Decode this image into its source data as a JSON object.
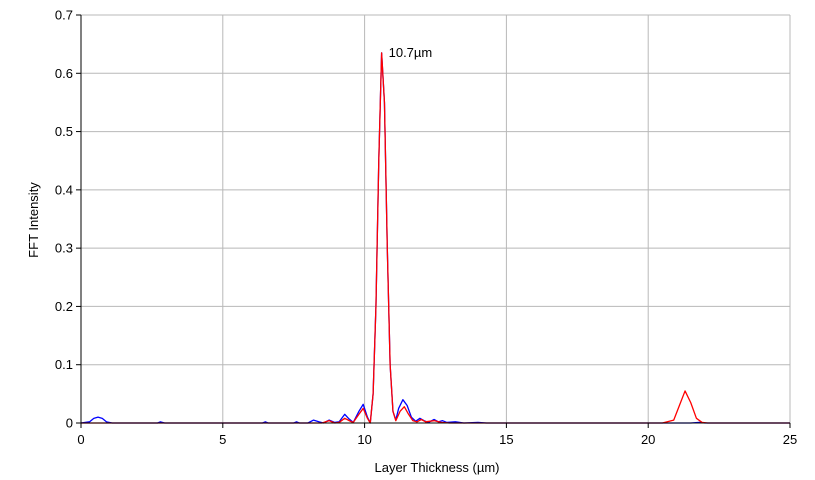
{
  "chart_data": {
    "type": "line",
    "xlabel": "Layer Thickness (µm)",
    "ylabel": "FFT Intensity",
    "xlim": [
      0,
      25
    ],
    "ylim": [
      0,
      0.7
    ],
    "xticks": [
      0,
      5,
      10,
      15,
      20,
      25
    ],
    "yticks": [
      0,
      0.1,
      0.2,
      0.3,
      0.4,
      0.5,
      0.6,
      0.7
    ],
    "ytick_labels": [
      "0",
      "0.1",
      "0.2",
      "0.3",
      "0.4",
      "0.5",
      "0.6",
      "0.7"
    ],
    "grid": true,
    "annotation": {
      "text": "10.7µm",
      "x": 10.6,
      "y": 0.635
    },
    "series": [
      {
        "color": "#0000ff",
        "points": [
          [
            0.0,
            0.0
          ],
          [
            0.3,
            0.002
          ],
          [
            0.45,
            0.008
          ],
          [
            0.6,
            0.01
          ],
          [
            0.75,
            0.008
          ],
          [
            0.9,
            0.002
          ],
          [
            1.1,
            0.0
          ],
          [
            2.7,
            0.0
          ],
          [
            2.8,
            0.002
          ],
          [
            2.95,
            0.0
          ],
          [
            6.4,
            0.0
          ],
          [
            6.5,
            0.002
          ],
          [
            6.6,
            0.0
          ],
          [
            7.5,
            0.0
          ],
          [
            7.6,
            0.002
          ],
          [
            7.7,
            0.0
          ],
          [
            8.0,
            0.0
          ],
          [
            8.2,
            0.005
          ],
          [
            8.4,
            0.002
          ],
          [
            8.55,
            0.0
          ],
          [
            8.75,
            0.005
          ],
          [
            8.95,
            0.001
          ],
          [
            9.1,
            0.002
          ],
          [
            9.3,
            0.015
          ],
          [
            9.45,
            0.007
          ],
          [
            9.6,
            0.001
          ],
          [
            9.8,
            0.02
          ],
          [
            9.95,
            0.032
          ],
          [
            10.1,
            0.01
          ],
          [
            10.2,
            0.0
          ],
          [
            10.3,
            0.05
          ],
          [
            10.4,
            0.2
          ],
          [
            10.5,
            0.45
          ],
          [
            10.6,
            0.635
          ],
          [
            10.7,
            0.55
          ],
          [
            10.8,
            0.3
          ],
          [
            10.9,
            0.1
          ],
          [
            11.0,
            0.02
          ],
          [
            11.1,
            0.005
          ],
          [
            11.2,
            0.025
          ],
          [
            11.35,
            0.04
          ],
          [
            11.5,
            0.03
          ],
          [
            11.65,
            0.01
          ],
          [
            11.8,
            0.003
          ],
          [
            11.95,
            0.008
          ],
          [
            12.1,
            0.004
          ],
          [
            12.25,
            0.001
          ],
          [
            12.45,
            0.006
          ],
          [
            12.6,
            0.002
          ],
          [
            12.75,
            0.004
          ],
          [
            12.9,
            0.001
          ],
          [
            13.2,
            0.002
          ],
          [
            13.5,
            0.0
          ],
          [
            14.0,
            0.001
          ],
          [
            14.3,
            0.0
          ],
          [
            21.5,
            0.0
          ],
          [
            21.8,
            0.001
          ],
          [
            22.0,
            0.0
          ],
          [
            25.0,
            0.0
          ]
        ]
      },
      {
        "color": "#ff0000",
        "points": [
          [
            0.0,
            0.0
          ],
          [
            8.5,
            0.0
          ],
          [
            8.75,
            0.004
          ],
          [
            8.95,
            0.0
          ],
          [
            9.1,
            0.001
          ],
          [
            9.3,
            0.008
          ],
          [
            9.5,
            0.003
          ],
          [
            9.6,
            0.001
          ],
          [
            9.8,
            0.015
          ],
          [
            9.95,
            0.025
          ],
          [
            10.1,
            0.008
          ],
          [
            10.2,
            0.0
          ],
          [
            10.3,
            0.05
          ],
          [
            10.4,
            0.2
          ],
          [
            10.5,
            0.45
          ],
          [
            10.6,
            0.635
          ],
          [
            10.7,
            0.55
          ],
          [
            10.8,
            0.3
          ],
          [
            10.9,
            0.1
          ],
          [
            11.0,
            0.02
          ],
          [
            11.1,
            0.004
          ],
          [
            11.25,
            0.02
          ],
          [
            11.4,
            0.028
          ],
          [
            11.55,
            0.015
          ],
          [
            11.7,
            0.004
          ],
          [
            11.85,
            0.002
          ],
          [
            12.0,
            0.006
          ],
          [
            12.15,
            0.002
          ],
          [
            12.45,
            0.004
          ],
          [
            12.7,
            0.001
          ],
          [
            13.0,
            0.0
          ],
          [
            20.5,
            0.0
          ],
          [
            20.9,
            0.005
          ],
          [
            21.1,
            0.03
          ],
          [
            21.3,
            0.055
          ],
          [
            21.5,
            0.035
          ],
          [
            21.7,
            0.008
          ],
          [
            21.9,
            0.001
          ],
          [
            22.1,
            0.0
          ],
          [
            25.0,
            0.0
          ]
        ]
      }
    ]
  }
}
